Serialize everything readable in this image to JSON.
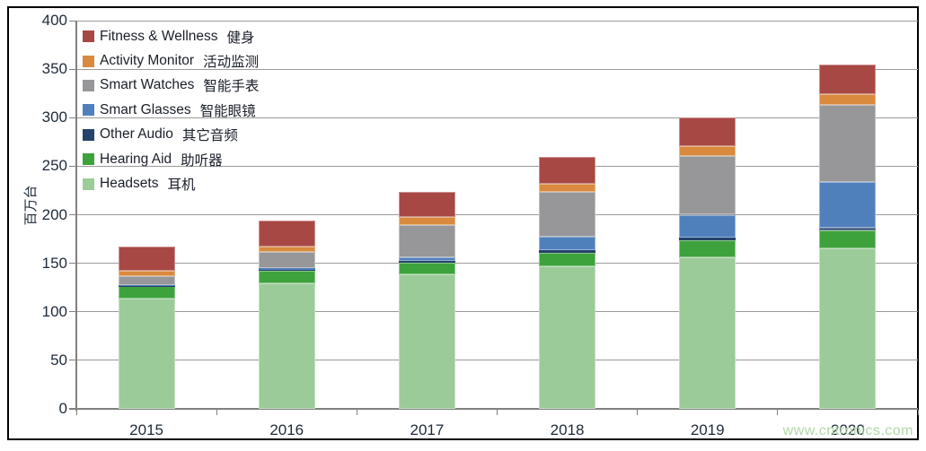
{
  "chart_data": {
    "type": "bar",
    "stacked": true,
    "title": "",
    "ylabel": "百万台",
    "xlabel": "",
    "ylim": [
      0,
      400
    ],
    "yticks": [
      0,
      50,
      100,
      150,
      200,
      250,
      300,
      350,
      400
    ],
    "grid": true,
    "legend_position": "top-left",
    "categories": [
      "2015",
      "2016",
      "2017",
      "2018",
      "2019",
      "2020"
    ],
    "series": [
      {
        "name": "Headsets",
        "name_zh": "耳机",
        "color": "#9BCB98",
        "values": [
          114,
          129,
          139,
          147,
          156,
          165
        ]
      },
      {
        "name": "Hearing Aid",
        "name_zh": "助听器",
        "color": "#3EA23C",
        "values": [
          12.5,
          13,
          11.5,
          14,
          18,
          18.5
        ]
      },
      {
        "name": "Other Audio",
        "name_zh": "其它音频",
        "color": "#25426B",
        "values": [
          0.5,
          1,
          1.5,
          2.5,
          2.5,
          3
        ]
      },
      {
        "name": "Smart Glasses",
        "name_zh": "智能眼镜",
        "color": "#5080BC",
        "values": [
          0.7,
          2,
          4.5,
          13.5,
          23.5,
          47
        ]
      },
      {
        "name": "Smart Watches",
        "name_zh": "智能手表",
        "color": "#97979A",
        "values": [
          8.8,
          17,
          32.5,
          46.5,
          60.5,
          79.5
        ]
      },
      {
        "name": "Activity Monitor",
        "name_zh": "活动监测",
        "color": "#D98A3E",
        "values": [
          5.5,
          5.5,
          9,
          8,
          10,
          11
        ]
      },
      {
        "name": "Fitness & Wellness",
        "name_zh": "健身",
        "color": "#A84845",
        "values": [
          25,
          26.5,
          25.5,
          28.5,
          29.5,
          31
        ]
      }
    ],
    "totals": [
      167,
      194,
      223.5,
      260,
      300,
      355
    ],
    "legend_order_top_to_bottom": [
      "Fitness & Wellness",
      "Activity Monitor",
      "Smart Watches",
      "Smart Glasses",
      "Other Audio",
      "Hearing Aid",
      "Headsets"
    ]
  },
  "watermark": "www.cntronics.com"
}
